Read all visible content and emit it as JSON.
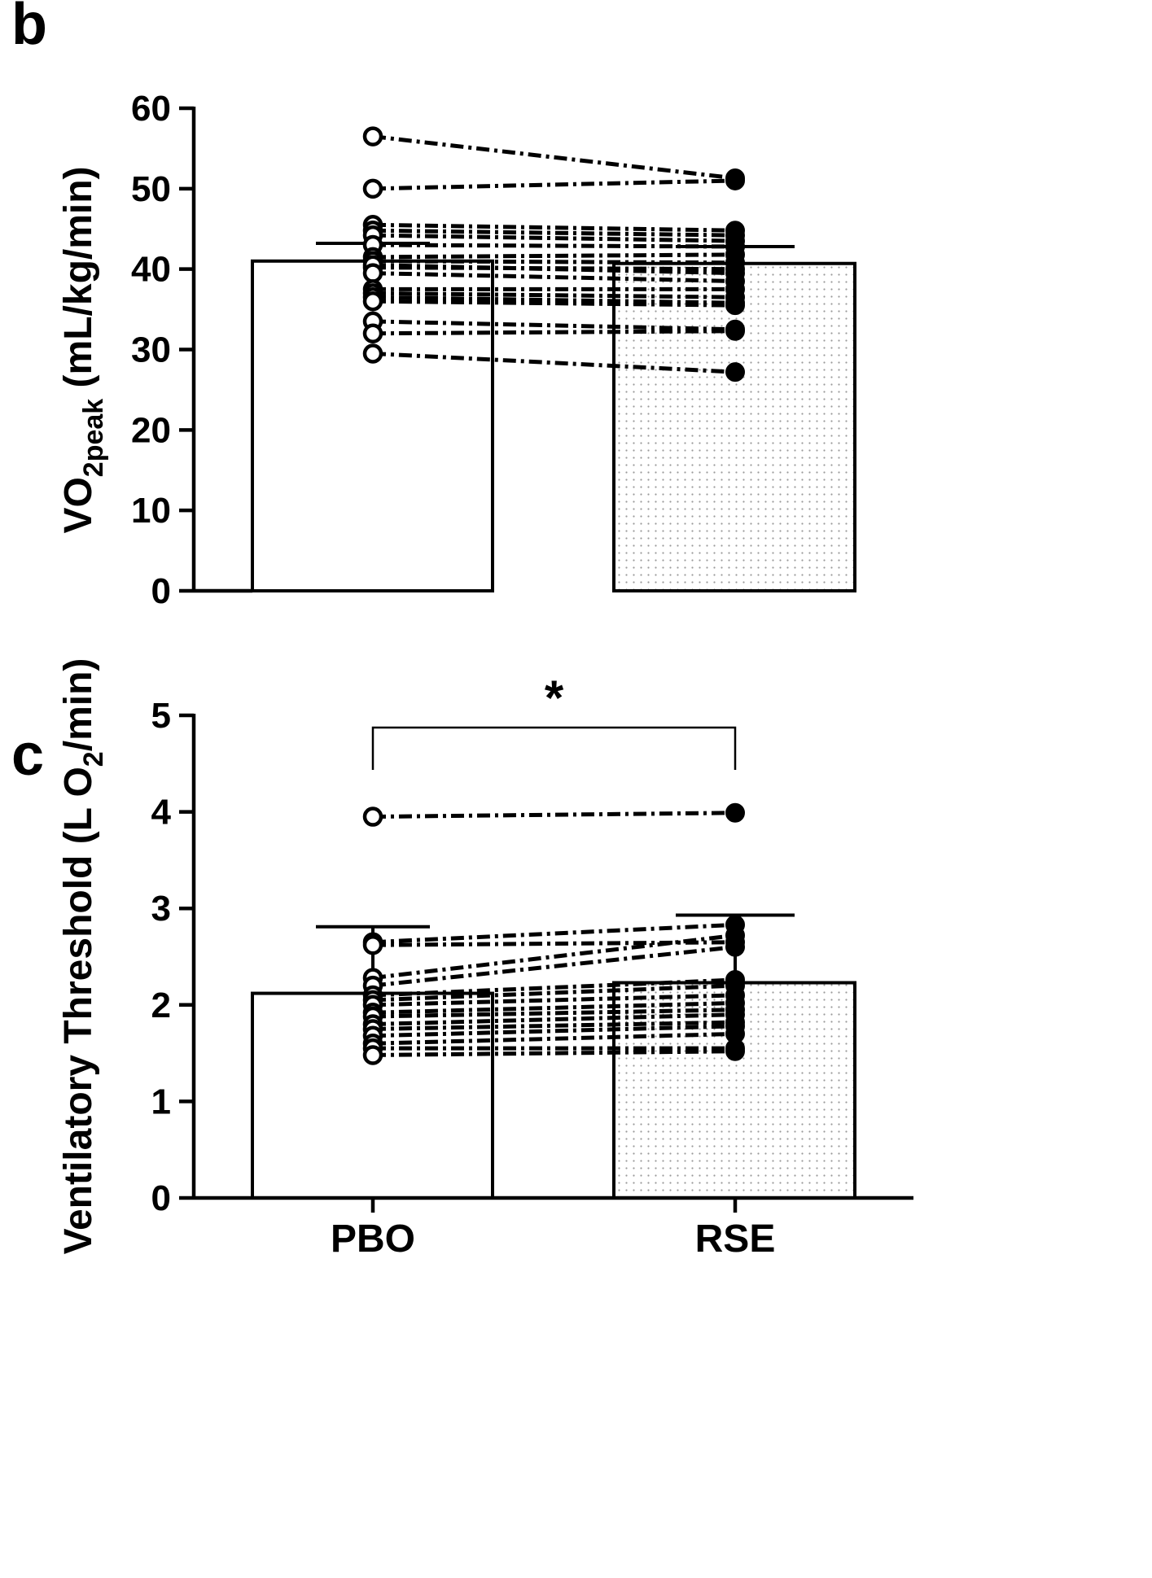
{
  "chart_data": [
    {
      "panel": "b",
      "type": "bar",
      "categories": [
        "PBO",
        "RSE"
      ],
      "ylabel_main": "VO",
      "ylabel_sub": "2peak",
      "ylabel_rest": " (mL/kg/min)",
      "ylim": [
        0,
        60
      ],
      "yticks": [
        0,
        10,
        20,
        30,
        40,
        50,
        60
      ],
      "means": [
        41.0,
        40.7
      ],
      "errors": [
        43.2,
        42.8
      ],
      "bar_styles": [
        "open",
        "dotted"
      ],
      "pairs": [
        [
          56.5,
          51.3
        ],
        [
          50.0,
          51.0
        ],
        [
          45.5,
          44.8
        ],
        [
          44.8,
          44.2
        ],
        [
          44.2,
          43.5
        ],
        [
          43.0,
          42.8
        ],
        [
          41.5,
          41.8
        ],
        [
          41.0,
          40.8
        ],
        [
          40.2,
          40.0
        ],
        [
          40.5,
          39.5
        ],
        [
          39.5,
          38.5
        ],
        [
          37.5,
          37.5
        ],
        [
          37.0,
          36.5
        ],
        [
          36.5,
          35.8
        ],
        [
          36.0,
          35.5
        ],
        [
          33.5,
          32.5
        ],
        [
          32.0,
          32.3
        ],
        [
          29.5,
          27.2
        ]
      ],
      "marker_styles": [
        "open",
        "filled"
      ]
    },
    {
      "panel": "c",
      "type": "bar",
      "categories": [
        "PBO",
        "RSE"
      ],
      "ylabel_main": "Ventilatory Threshold (L O",
      "ylabel_sub": "2",
      "ylabel_rest": "/min)",
      "ylim": [
        0,
        5
      ],
      "yticks": [
        0,
        1,
        2,
        3,
        4,
        5
      ],
      "means": [
        2.12,
        2.23
      ],
      "errors": [
        2.81,
        2.93
      ],
      "bar_styles": [
        "open",
        "dotted"
      ],
      "significance": "*",
      "pairs": [
        [
          3.95,
          3.99
        ],
        [
          2.65,
          2.83
        ],
        [
          2.62,
          2.65
        ],
        [
          2.28,
          2.72
        ],
        [
          2.2,
          2.6
        ],
        [
          2.1,
          2.26
        ],
        [
          2.05,
          2.2
        ],
        [
          2.0,
          2.1
        ],
        [
          1.92,
          2.02
        ],
        [
          1.88,
          1.95
        ],
        [
          1.8,
          1.9
        ],
        [
          1.75,
          1.82
        ],
        [
          1.68,
          1.78
        ],
        [
          1.6,
          1.7
        ],
        [
          1.55,
          1.55
        ],
        [
          1.48,
          1.52
        ]
      ],
      "marker_styles": [
        "open",
        "filled"
      ]
    }
  ],
  "panels": {
    "b": "b",
    "c": "c"
  },
  "colors": {
    "ink": "#000000",
    "background": "#ffffff",
    "dot_fill": "#9a9a9a"
  }
}
